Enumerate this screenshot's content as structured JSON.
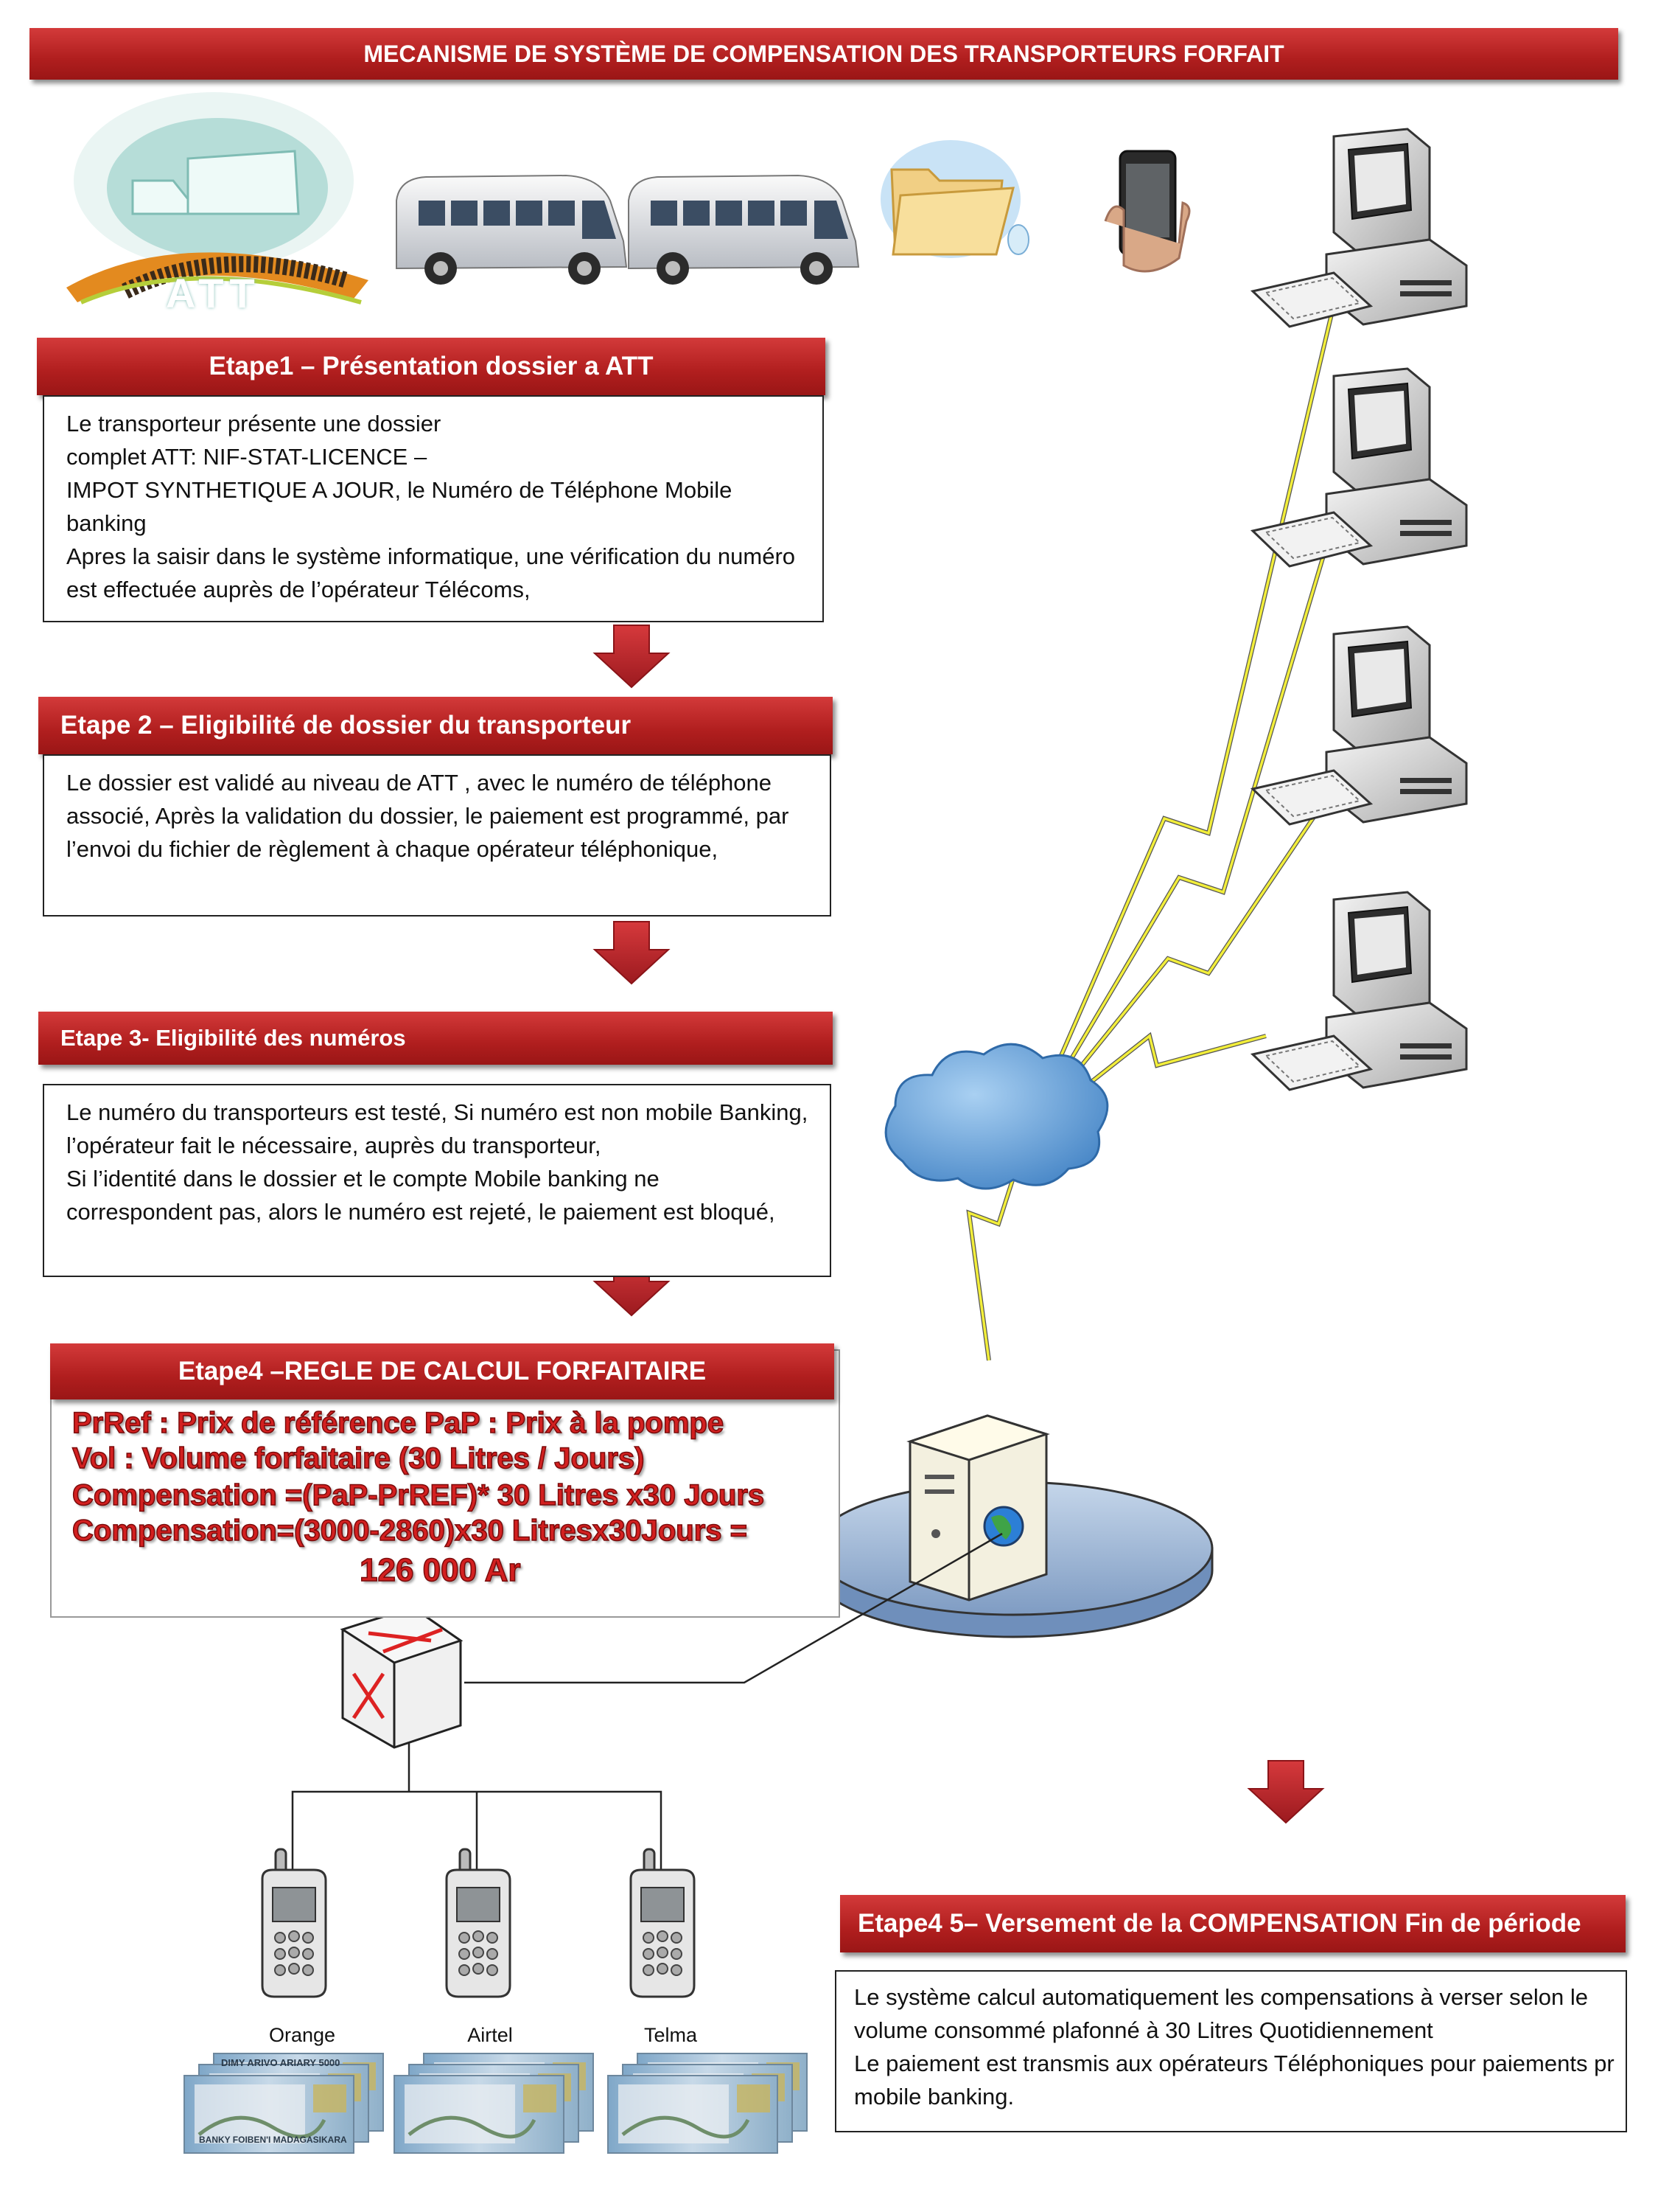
{
  "title": "MECANISME DE SYSTÈME DE COMPENSATION DES TRANSPORTEURS FORFAIT",
  "logo_text": "ATT",
  "steps": [
    {
      "heading": "Etape1 – Présentation dossier a ATT",
      "lines": [
        "Le transporteur présente une dossier",
        "complet ATT: NIF-STAT-LICENCE –",
        "IMPOT SYNTHETIQUE A JOUR, le Numéro de Téléphone Mobile",
        "banking",
        "Apres la saisir dans le système informatique,  une vérification du numéro",
        "est effectuée auprès de l’opérateur Télécoms,"
      ]
    },
    {
      "heading": "Etape 2 – Eligibilité de dossier du transporteur",
      "lines": [
        "Le dossier est validé au niveau de ATT , avec le numéro de téléphone",
        "associé, Après  la validation du dossier, le paiement est programmé, par",
        "l’envoi du fichier de règlement à chaque opérateur téléphonique,"
      ]
    },
    {
      "heading": "Etape 3- Eligibilité des numéros",
      "lines": [
        "Le numéro du transporteurs est testé, Si numéro est non mobile Banking,",
        "l’opérateur fait le nécessaire, auprès du transporteur,",
        "Si l’identité dans le dossier et le compte Mobile banking ne",
        "correspondent pas, alors le numéro est rejeté, le paiement  est bloqué,"
      ]
    },
    {
      "heading": "Etape4 –REGLE DE CALCUL FORFAITAIRE",
      "lines": [
        "PrRef  : Prix de référence     PaP : Prix à la pompe",
        "Vol : Volume forfaitaire (30 Litres / Jours)",
        "Compensation =(PaP-PrREF)* 30 Litres x30 Jours",
        "Compensation=(3000-2860)x30 Litresx30Jours =",
        "126 000 Ar"
      ]
    },
    {
      "heading": "Etape4 5– Versement de la COMPENSATION Fin de période",
      "lines": [
        "Le système calcul automatiquement les compensations à verser  selon le",
        "volume consommé  plafonné à 30 Litres Quotidiennement",
        "Le paiement est transmis aux opérateurs Téléphoniques pour paiements pr",
        "mobile banking."
      ]
    }
  ],
  "operators": [
    "Orange",
    "Airtel",
    "Telma"
  ],
  "banknote_text": [
    "DIMY ARIVO",
    "ARIARY",
    "5000",
    "BANKY FOIBEN'I",
    "MADAGASIKARA"
  ],
  "colors": {
    "banner": "#b01e1e",
    "arrow": "#c0282d",
    "lightning": "#f2ee3a",
    "cloud": "#5f9fd6"
  }
}
